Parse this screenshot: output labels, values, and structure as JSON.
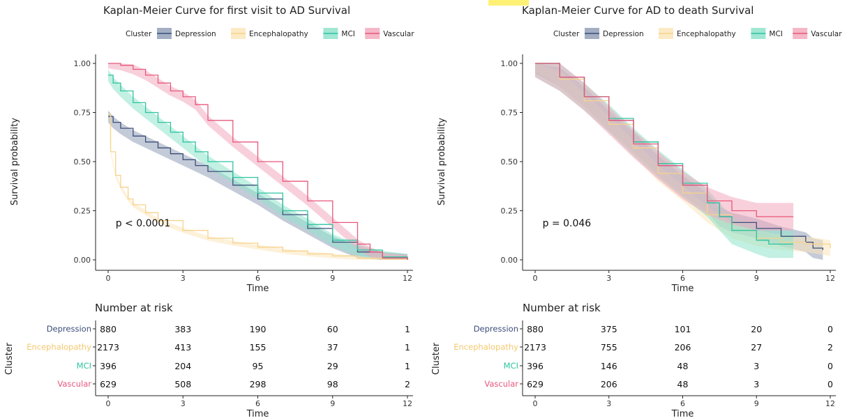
{
  "chart_data": [
    {
      "type": "line",
      "title": "Kaplan-Meier Curve for first visit to AD Survival",
      "legend_title": "Cluster",
      "legend_position": "top",
      "xlabel": "Time",
      "ylabel": "Survival probability",
      "xlim": [
        0,
        12
      ],
      "ylim": [
        0,
        1
      ],
      "x_ticks": [
        "0",
        "3",
        "6",
        "9",
        "12"
      ],
      "y_ticks": [
        "0.00",
        "0.25",
        "0.50",
        "0.75",
        "1.00"
      ],
      "grid": false,
      "annotation": "p < 0.0001",
      "series": [
        {
          "name": "Depression",
          "color": "#3b4f7a",
          "fill": "#93a0b8",
          "band": 0.03,
          "x": [
            0,
            0.2,
            0.5,
            1,
            1.5,
            2,
            2.5,
            3,
            3.5,
            4,
            5,
            6,
            7,
            8,
            9,
            10,
            11,
            12
          ],
          "y": [
            0.73,
            0.7,
            0.67,
            0.63,
            0.6,
            0.57,
            0.54,
            0.51,
            0.48,
            0.45,
            0.38,
            0.31,
            0.23,
            0.16,
            0.09,
            0.04,
            0.01,
            0.0
          ]
        },
        {
          "name": "Encephalopathy",
          "color": "#f5d38c",
          "fill": "#fbe6bb",
          "band": 0.012,
          "x": [
            0,
            0.1,
            0.3,
            0.5,
            0.8,
            1,
            1.5,
            2,
            3,
            4,
            5,
            6,
            7,
            8,
            9,
            10,
            11,
            12
          ],
          "y": [
            0.74,
            0.55,
            0.43,
            0.37,
            0.31,
            0.28,
            0.24,
            0.2,
            0.15,
            0.11,
            0.085,
            0.065,
            0.045,
            0.03,
            0.02,
            0.008,
            0.002,
            0.0
          ]
        },
        {
          "name": "MCI",
          "color": "#2ec4a0",
          "fill": "#8fe3cc",
          "band": 0.03,
          "x": [
            0,
            0.2,
            0.5,
            1,
            1.5,
            2,
            2.5,
            3,
            3.5,
            4,
            5,
            6,
            7,
            8,
            9,
            10,
            11,
            12
          ],
          "y": [
            0.94,
            0.9,
            0.86,
            0.8,
            0.75,
            0.7,
            0.65,
            0.6,
            0.55,
            0.5,
            0.42,
            0.34,
            0.25,
            0.18,
            0.1,
            0.05,
            0.015,
            0.0
          ]
        },
        {
          "name": "Vascular",
          "color": "#e8577b",
          "fill": "#f3aabd",
          "band": 0.025,
          "x": [
            0,
            0.5,
            1,
            1.5,
            2,
            2.5,
            3,
            3.5,
            4,
            5,
            6,
            7,
            8,
            9,
            10,
            10.5,
            11,
            12
          ],
          "y": [
            1.0,
            0.99,
            0.97,
            0.94,
            0.9,
            0.86,
            0.83,
            0.79,
            0.71,
            0.6,
            0.5,
            0.4,
            0.3,
            0.19,
            0.08,
            0.04,
            0.01,
            0.0
          ]
        }
      ],
      "risk_table": {
        "title": "Number at risk",
        "ylabel": "Cluster",
        "xlabel": "Time",
        "x_ticks": [
          "0",
          "3",
          "6",
          "9",
          "12"
        ],
        "rows": [
          {
            "name": "Depression",
            "color": "#3b4f7a",
            "values": [
              "880",
              "383",
              "190",
              "60",
              "1"
            ]
          },
          {
            "name": "Encephalopathy",
            "color": "#f5c86e",
            "values": [
              "2173",
              "413",
              "155",
              "37",
              "1"
            ]
          },
          {
            "name": "MCI",
            "color": "#2ec4a0",
            "values": [
              "396",
              "204",
              "95",
              "29",
              "1"
            ]
          },
          {
            "name": "Vascular",
            "color": "#e8577b",
            "values": [
              "629",
              "508",
              "298",
              "98",
              "2"
            ]
          }
        ]
      }
    },
    {
      "type": "line",
      "title": "Kaplan-Meier Curve for AD to death Survival",
      "legend_title": "Cluster",
      "legend_position": "top",
      "xlabel": "Time",
      "ylabel": "Survival probability",
      "xlim": [
        0,
        12
      ],
      "ylim": [
        0,
        1
      ],
      "x_ticks": [
        "0",
        "3",
        "6",
        "9",
        "12"
      ],
      "y_ticks": [
        "0.00",
        "0.25",
        "0.50",
        "0.75",
        "1.00"
      ],
      "grid": false,
      "annotation": "p = 0.046",
      "series": [
        {
          "name": "Depression",
          "color": "#3b4f7a",
          "fill": "#93a0b8",
          "band": 0.05,
          "x": [
            0,
            1,
            2,
            3,
            4,
            5,
            6,
            7,
            7.5,
            8,
            9,
            10,
            11,
            11.3,
            11.7
          ],
          "y": [
            1.0,
            0.93,
            0.83,
            0.71,
            0.6,
            0.48,
            0.38,
            0.29,
            0.22,
            0.19,
            0.16,
            0.12,
            0.09,
            0.06,
            0.05
          ]
        },
        {
          "name": "Encephalopathy",
          "color": "#f5d38c",
          "fill": "#fbe6bb",
          "band": 0.04,
          "x": [
            0,
            1,
            2,
            3,
            4,
            5,
            6,
            7,
            8,
            9,
            10,
            11,
            12
          ],
          "y": [
            1.0,
            0.92,
            0.81,
            0.69,
            0.57,
            0.44,
            0.34,
            0.23,
            0.15,
            0.11,
            0.09,
            0.08,
            0.06
          ]
        },
        {
          "name": "MCI",
          "color": "#2ec4a0",
          "fill": "#8fe3cc",
          "band": 0.07,
          "x": [
            0,
            1,
            2,
            3,
            4,
            5,
            6,
            7,
            7.5,
            8,
            9,
            9.5,
            10.5
          ],
          "y": [
            1.0,
            0.93,
            0.83,
            0.72,
            0.6,
            0.49,
            0.39,
            0.29,
            0.22,
            0.15,
            0.1,
            0.08,
            0.08
          ]
        },
        {
          "name": "Vascular",
          "color": "#e8577b",
          "fill": "#f3aabd",
          "band": 0.07,
          "x": [
            0,
            1,
            2,
            3,
            4,
            5,
            6,
            7,
            8,
            9,
            9.5,
            10.5
          ],
          "y": [
            1.0,
            0.93,
            0.83,
            0.71,
            0.59,
            0.48,
            0.38,
            0.3,
            0.25,
            0.22,
            0.22,
            0.22
          ]
        }
      ],
      "risk_table": {
        "title": "Number at risk",
        "ylabel": "Cluster",
        "xlabel": "Time",
        "x_ticks": [
          "0",
          "3",
          "6",
          "9",
          "12"
        ],
        "rows": [
          {
            "name": "Depression",
            "color": "#3b4f7a",
            "values": [
              "880",
              "375",
              "101",
              "20",
              "0"
            ]
          },
          {
            "name": "Encephalopathy",
            "color": "#f5c86e",
            "values": [
              "2173",
              "755",
              "206",
              "27",
              "2"
            ]
          },
          {
            "name": "MCI",
            "color": "#2ec4a0",
            "values": [
              "396",
              "146",
              "48",
              "3",
              "0"
            ]
          },
          {
            "name": "Vascular",
            "color": "#e8577b",
            "values": [
              "629",
              "206",
              "48",
              "3",
              "0"
            ]
          }
        ]
      }
    }
  ]
}
